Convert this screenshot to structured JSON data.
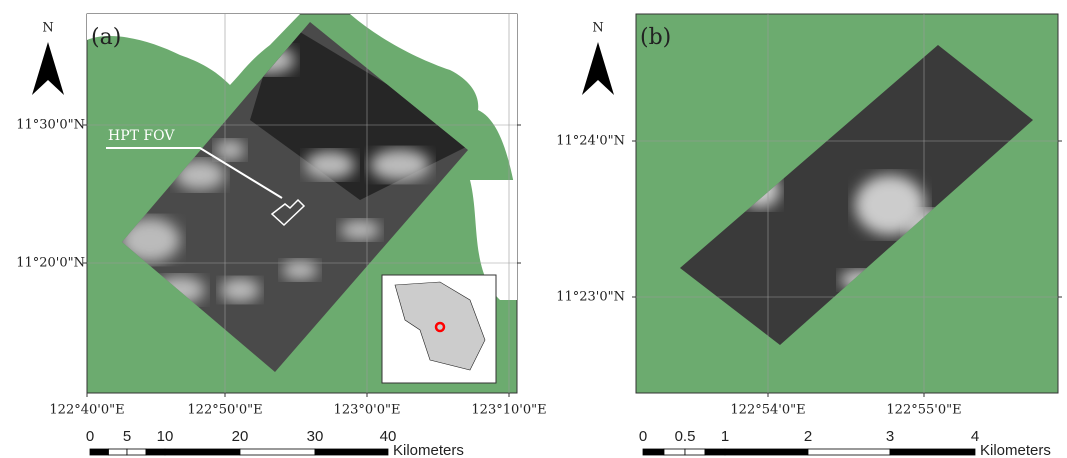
{
  "panels": [
    {
      "label": "(a)",
      "north": "N",
      "annotation": "HPT FOV",
      "lat_labels": [
        "11°30'0\"N",
        "11°20'0\"N"
      ],
      "lon_labels": [
        "122°40'0\"E",
        "122°50'0\"E",
        "123°0'0\"E",
        "123°10'0\"E"
      ],
      "scale_bar": {
        "ticks": [
          "0",
          "5",
          "10",
          "20",
          "30",
          "40"
        ],
        "unit": "Kilometers"
      }
    },
    {
      "label": "(b)",
      "north": "N",
      "lat_labels": [
        "11°24'0\"N",
        "11°23'0\"N"
      ],
      "lon_labels": [
        "122°54'0\"E",
        "122°55'0\"E"
      ],
      "scale_bar": {
        "ticks": [
          "0",
          "0.5",
          "1",
          "2",
          "3",
          "4"
        ],
        "unit": "Kilometers"
      }
    }
  ]
}
